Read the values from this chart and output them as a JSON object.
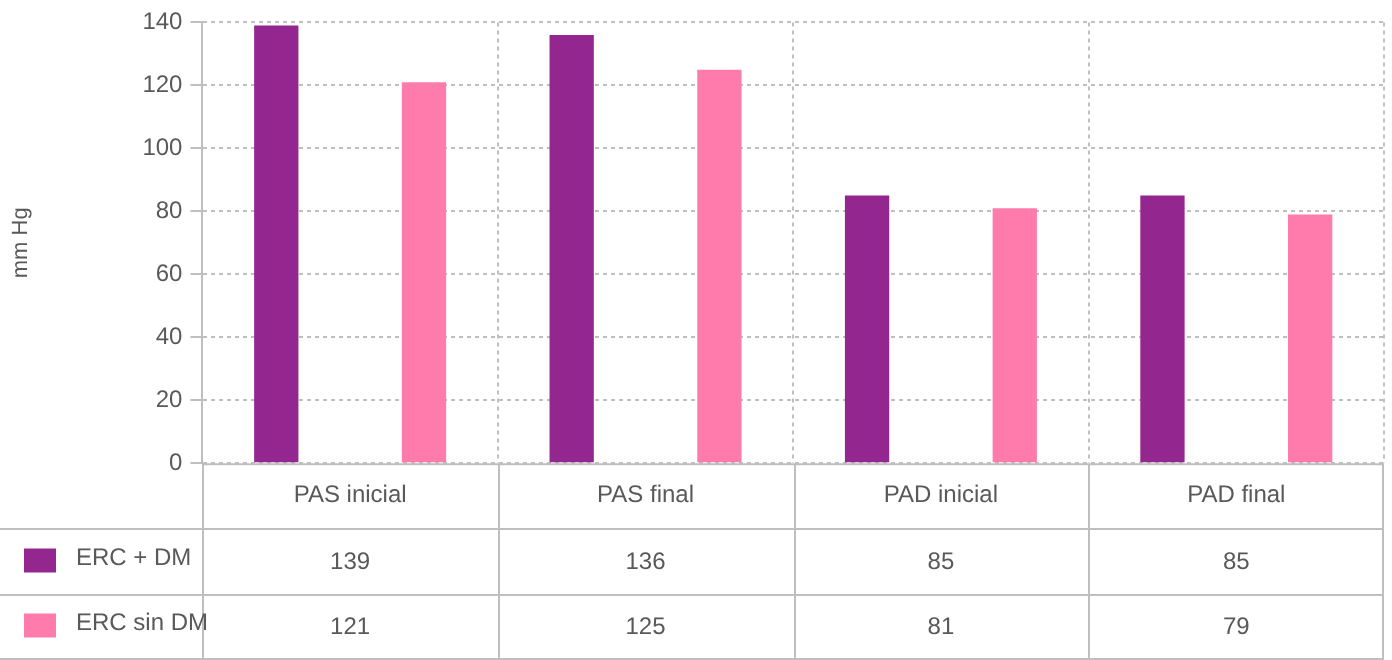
{
  "chart_data": {
    "type": "bar",
    "ylabel": "mm Hg",
    "categories": [
      "PAS inicial",
      "PAS final",
      "PAD inicial",
      "PAD final"
    ],
    "series": [
      {
        "name": "ERC + DM",
        "color": "#93278f",
        "values": [
          139,
          136,
          85,
          85
        ]
      },
      {
        "name": "ERC sin DM",
        "color": "#ff7bac",
        "values": [
          121,
          125,
          81,
          79
        ]
      }
    ],
    "ylim": [
      0,
      140
    ],
    "yticks": [
      0,
      20,
      40,
      60,
      80,
      100,
      120,
      140
    ],
    "grid": true,
    "legend": "bottom left",
    "data_labels": true
  }
}
